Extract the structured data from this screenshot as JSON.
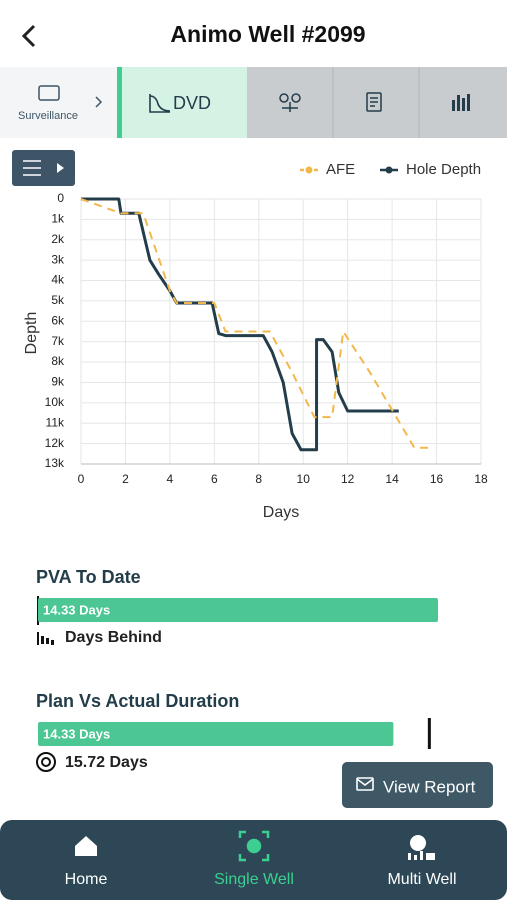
{
  "header": {
    "title": "Animo Well #2099"
  },
  "tabs": [
    {
      "label": "Surveillance"
    },
    {
      "label": "DVD"
    }
  ],
  "chart": {
    "type": "line",
    "xlabel": "Days",
    "ylabel": "Depth",
    "xlim": [
      0,
      18
    ],
    "xticks": [
      0,
      2,
      4,
      6,
      8,
      10,
      12,
      14,
      16,
      18
    ],
    "ylim": [
      0,
      13000
    ],
    "yticks": [
      0,
      {
        "value": 1000,
        "label": "1k"
      },
      {
        "value": 2000,
        "label": "2k"
      },
      {
        "value": 3000,
        "label": "3k"
      },
      {
        "value": 4000,
        "label": "4k"
      },
      {
        "value": 5000,
        "label": "5k"
      },
      {
        "value": 6000,
        "label": "6k"
      },
      {
        "value": 7000,
        "label": "7k"
      },
      {
        "value": 8000,
        "label": "8k"
      },
      {
        "value": 9000,
        "label": "9k"
      },
      {
        "value": 10000,
        "label": "10k"
      },
      {
        "value": 11000,
        "label": "11k"
      },
      {
        "value": 12000,
        "label": "12k"
      },
      {
        "value": 13000,
        "label": "13k"
      }
    ],
    "grid": true,
    "legend": "top-right",
    "series": [
      {
        "name": "AFE",
        "color": "#f2b84b",
        "dashed": true,
        "x": [
          0,
          1.8,
          2.8,
          4,
          4.3,
          6,
          6.5,
          8.5,
          9.5,
          10.5,
          11.3,
          11.8,
          13,
          15,
          15.9
        ],
        "values": [
          0,
          700,
          700,
          4500,
          5100,
          5100,
          6500,
          6500,
          8500,
          10700,
          10700,
          6500,
          8500,
          12200,
          12200
        ]
      },
      {
        "name": "Hole Depth",
        "color": "#233d4a",
        "dashed": false,
        "x": [
          0,
          1.7,
          1.8,
          2.6,
          3.1,
          3.5,
          4,
          4.3,
          5.9,
          6.2,
          6.5,
          8.2,
          8.6,
          9.1,
          9.5,
          9.9,
          10.6,
          10.6,
          10.9,
          11.3,
          11.6,
          12,
          14.3
        ],
        "values": [
          0,
          0,
          700,
          700,
          3000,
          3700,
          4500,
          5100,
          5100,
          6600,
          6700,
          6700,
          7500,
          9000,
          11500,
          12300,
          12300,
          6900,
          6900,
          7500,
          9500,
          10400,
          10400
        ]
      }
    ]
  },
  "pva_to_date": {
    "title": "PVA To Date",
    "bar": {
      "value": 14.33,
      "label": "14.33 Days"
    },
    "status": "Days Behind"
  },
  "plan_vs_actual": {
    "title": "Plan Vs Actual Duration",
    "actual": {
      "value": 14.33,
      "label": "14.33 Days"
    },
    "plan": {
      "value": 15.72,
      "label": "15.72 Days"
    }
  },
  "button": "View Report",
  "nav": [
    "Home",
    "Single Well",
    "Multi Well"
  ]
}
